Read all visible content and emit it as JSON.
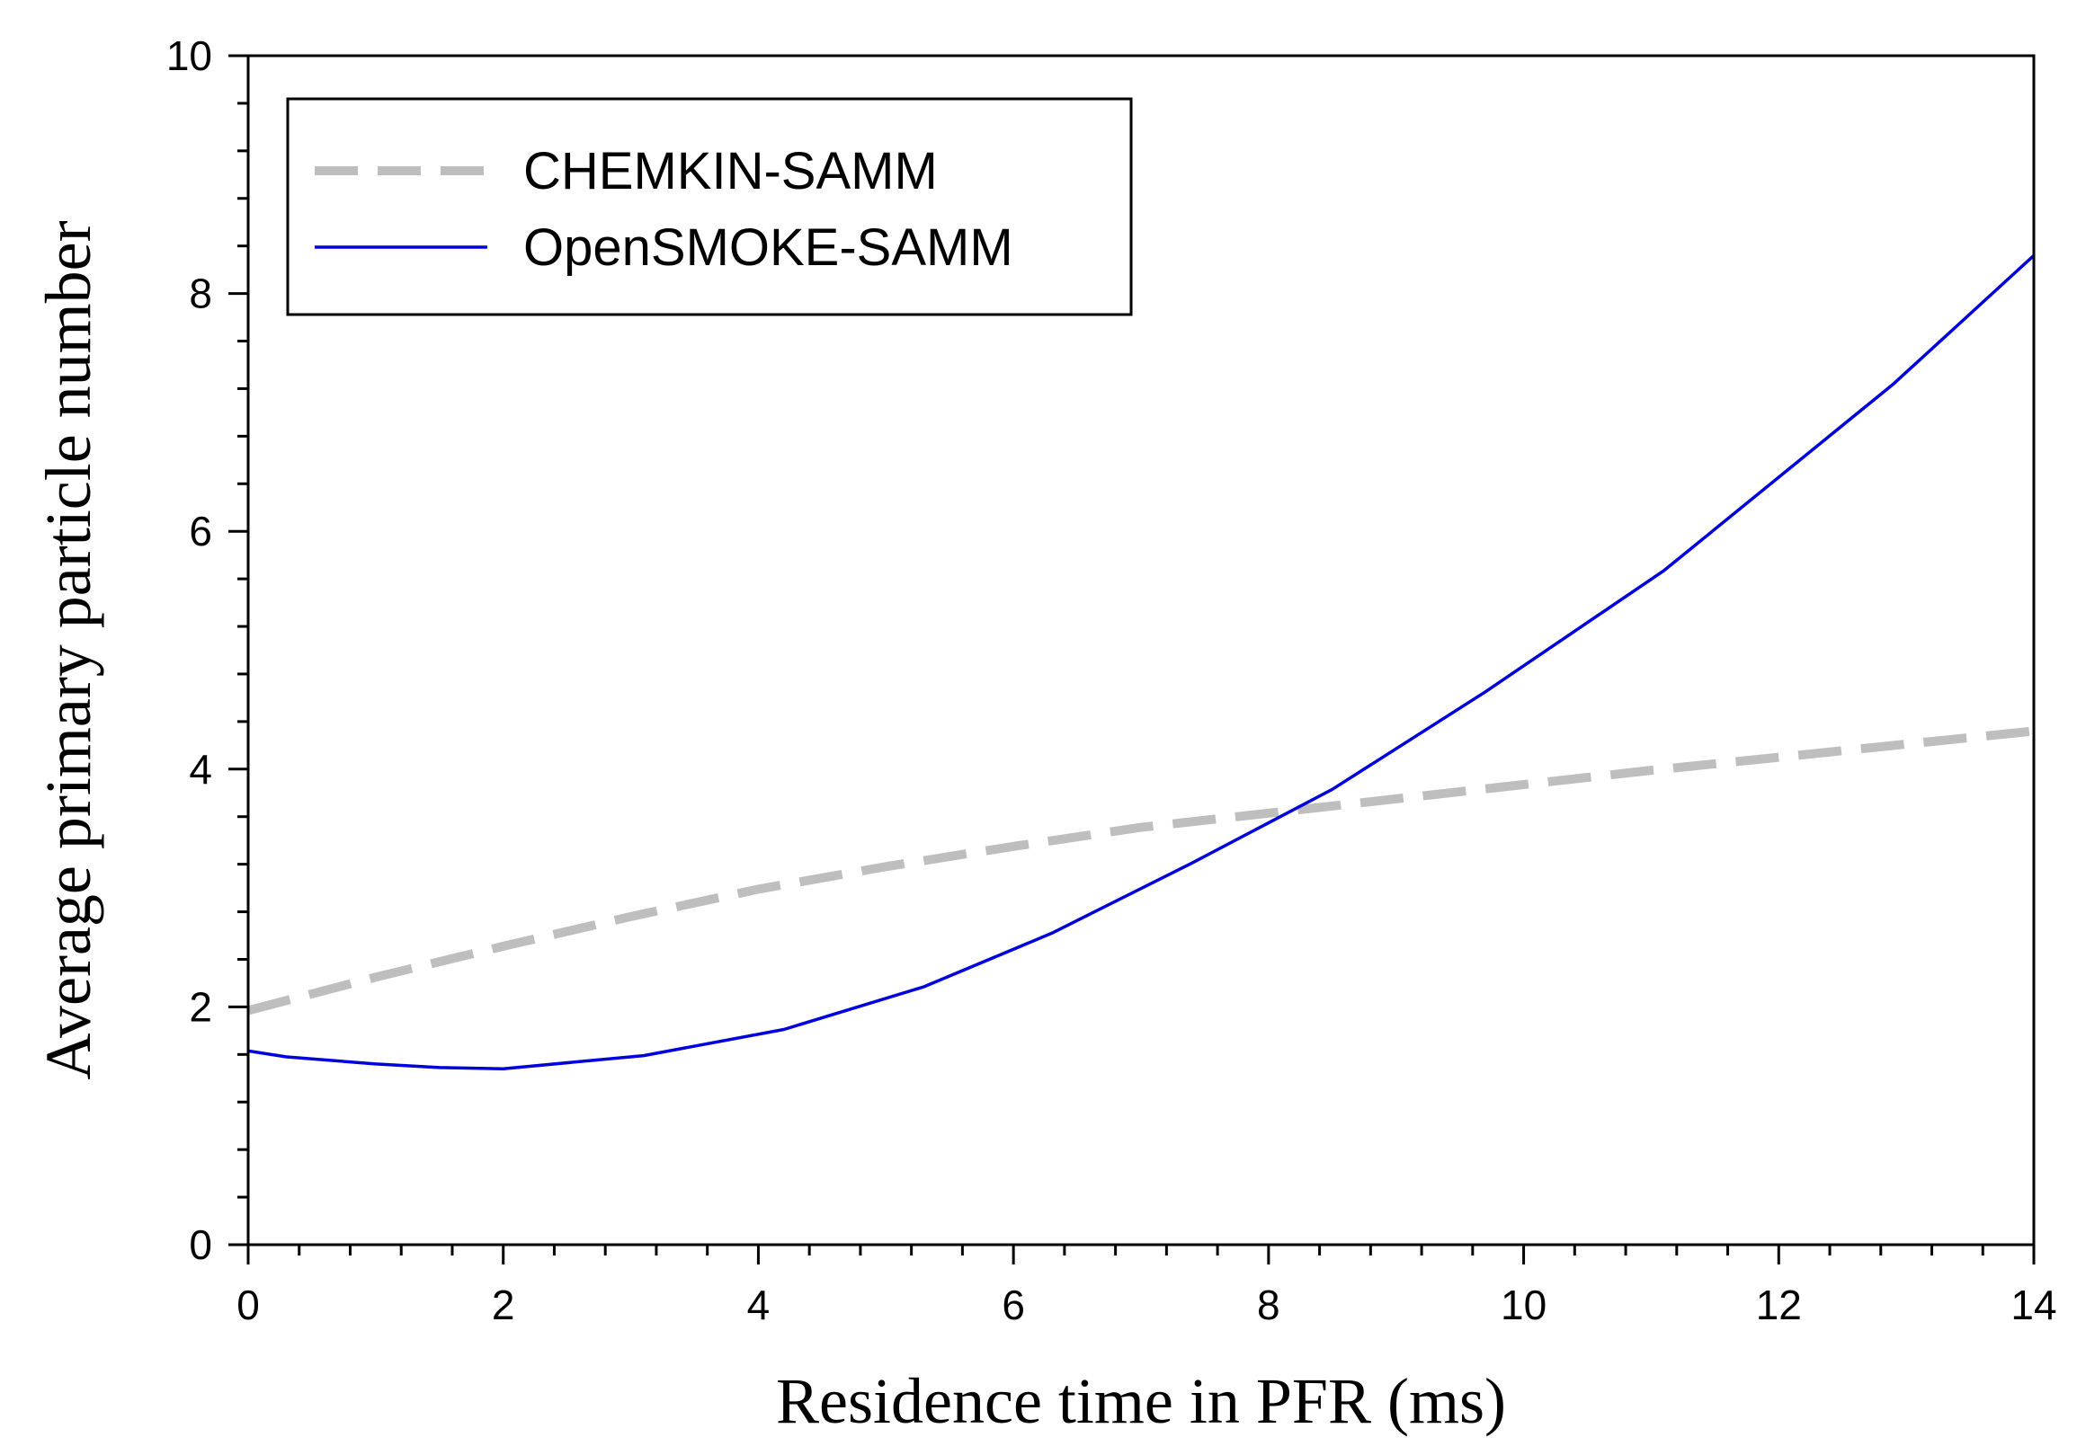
{
  "chart_data": {
    "type": "line",
    "title": "",
    "xlabel": "Residence time in PFR (ms)",
    "ylabel": "Average primary particle number",
    "xlim": [
      0,
      14
    ],
    "ylim": [
      0,
      10
    ],
    "xticks": [
      0,
      2,
      4,
      6,
      8,
      10,
      12,
      14
    ],
    "yticks": [
      0,
      2,
      4,
      6,
      8,
      10
    ],
    "x_minor_step": 0.4,
    "y_minor_step": 0.4,
    "grid": false,
    "legend_position": "top-left",
    "series": [
      {
        "name": "CHEMKIN-SAMM",
        "color": "#bebebe",
        "style": "dashed",
        "x": [
          0,
          1,
          2,
          3,
          4,
          5,
          6,
          7,
          8,
          9,
          10,
          11,
          12,
          13,
          14
        ],
        "y": [
          1.97,
          2.25,
          2.51,
          2.76,
          2.99,
          3.18,
          3.35,
          3.51,
          3.63,
          3.75,
          3.87,
          3.99,
          4.1,
          4.21,
          4.32
        ]
      },
      {
        "name": "OpenSMOKE-SAMM",
        "color": "#0000dd",
        "style": "solid",
        "x": [
          0,
          0.3,
          1,
          1.5,
          2,
          3.1,
          4.2,
          5.3,
          6.3,
          7.4,
          8.5,
          9.7,
          11.1,
          12.9,
          14
        ],
        "y": [
          1.63,
          1.58,
          1.52,
          1.49,
          1.48,
          1.59,
          1.81,
          2.17,
          2.62,
          3.21,
          3.83,
          4.65,
          5.67,
          7.24,
          8.32
        ]
      }
    ]
  }
}
